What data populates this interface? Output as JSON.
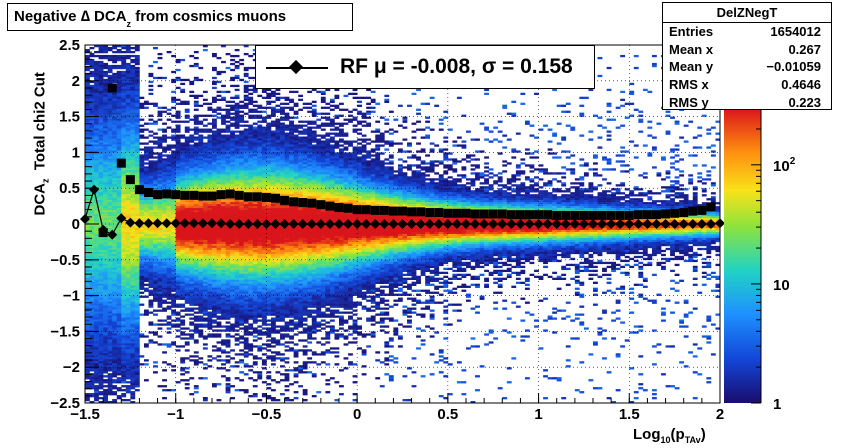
{
  "title": {
    "prefix": "Negative ∆ DCA",
    "sub": "z",
    "suffix": " from cosmics muons"
  },
  "stats": {
    "name": "DelZNegT",
    "rows": [
      {
        "key": "Entries",
        "value": "1654012"
      },
      {
        "key": "Mean x",
        "value": "0.267"
      },
      {
        "key": "Mean y",
        "value": "−0.01059"
      },
      {
        "key": "RMS x",
        "value": "0.4646"
      },
      {
        "key": "RMS y",
        "value": "0.223"
      }
    ]
  },
  "legend": {
    "text": "RF μ = -0.008, σ =   0.158"
  },
  "axes": {
    "ylabel_main": "DCA",
    "ylabel_sub": "z",
    "ylabel_rest": "  Total chi2 Cut",
    "xlabel_main": "Log",
    "xlabel_sub": "10",
    "xlabel_rest": "(p",
    "xlabel_sub2": "TAv",
    "xlabel_end": ")"
  },
  "chart_data": {
    "type": "heatmap",
    "xlim": [
      -1.5,
      2
    ],
    "ylim": [
      -2.5,
      2.5
    ],
    "xticks": [
      {
        "v": -1.5,
        "label": "−1.5"
      },
      {
        "v": -1,
        "label": "−1"
      },
      {
        "v": -0.5,
        "label": "−0.5"
      },
      {
        "v": 0,
        "label": "0"
      },
      {
        "v": 0.5,
        "label": "0.5"
      },
      {
        "v": 1,
        "label": "1"
      },
      {
        "v": 1.5,
        "label": "1.5"
      },
      {
        "v": 2,
        "label": "2"
      }
    ],
    "yticks": [
      {
        "v": -2.5,
        "label": "−2.5"
      },
      {
        "v": -2,
        "label": "−2"
      },
      {
        "v": -1.5,
        "label": "−1.5"
      },
      {
        "v": -1,
        "label": "−1"
      },
      {
        "v": -0.5,
        "label": "−0.5"
      },
      {
        "v": 0,
        "label": "0"
      },
      {
        "v": 0.5,
        "label": "0.5"
      },
      {
        "v": 1,
        "label": "1"
      },
      {
        "v": 1.5,
        "label": "1.5"
      },
      {
        "v": 2,
        "label": "2"
      },
      {
        "v": 2.5,
        "label": "2.5"
      }
    ],
    "colorbar": {
      "scale": "log",
      "min": 1,
      "max": 300,
      "labels": [
        {
          "v": 1,
          "label": "1"
        },
        {
          "v": 10,
          "label": "10"
        },
        {
          "v": 100,
          "label": "10",
          "sup": "2"
        }
      ]
    },
    "grid": true,
    "series": [
      {
        "marker": "square",
        "x": [
          -1.4,
          -1.35,
          -1.3,
          -1.25,
          -1.2,
          -1.15,
          -1.1,
          -1.05,
          -1.0,
          -0.95,
          -0.9,
          -0.85,
          -0.8,
          -0.75,
          -0.7,
          -0.65,
          -0.6,
          -0.55,
          -0.5,
          -0.45,
          -0.4,
          -0.35,
          -0.3,
          -0.25,
          -0.2,
          -0.15,
          -0.1,
          -0.05,
          0.0,
          0.05,
          0.1,
          0.15,
          0.2,
          0.25,
          0.3,
          0.35,
          0.4,
          0.45,
          0.5,
          0.55,
          0.6,
          0.65,
          0.7,
          0.75,
          0.8,
          0.85,
          0.9,
          0.95,
          1.0,
          1.05,
          1.1,
          1.15,
          1.2,
          1.25,
          1.3,
          1.35,
          1.4,
          1.45,
          1.5,
          1.55,
          1.6,
          1.65,
          1.7,
          1.75,
          1.8,
          1.85,
          1.9,
          1.95
        ],
        "y": [
          -0.12,
          1.9,
          0.85,
          0.62,
          0.48,
          0.44,
          0.41,
          0.42,
          0.41,
          0.4,
          0.4,
          0.39,
          0.39,
          0.41,
          0.42,
          0.4,
          0.38,
          0.38,
          0.37,
          0.36,
          0.33,
          0.31,
          0.3,
          0.29,
          0.27,
          0.25,
          0.23,
          0.22,
          0.2,
          0.2,
          0.19,
          0.19,
          0.18,
          0.18,
          0.17,
          0.17,
          0.16,
          0.16,
          0.15,
          0.15,
          0.15,
          0.14,
          0.14,
          0.14,
          0.14,
          0.13,
          0.13,
          0.13,
          0.13,
          0.13,
          0.12,
          0.12,
          0.12,
          0.12,
          0.12,
          0.12,
          0.12,
          0.12,
          0.12,
          0.13,
          0.13,
          0.13,
          0.14,
          0.15,
          0.16,
          0.18,
          0.19,
          0.24
        ]
      },
      {
        "marker": "diamond",
        "x": [
          -1.5,
          -1.45,
          -1.4,
          -1.35,
          -1.3,
          -1.25,
          -1.2,
          -1.15,
          -1.1,
          -1.05,
          -1.0,
          -0.95,
          -0.9,
          -0.85,
          -0.8,
          -0.75,
          -0.7,
          -0.65,
          -0.6,
          -0.55,
          -0.5,
          -0.45,
          -0.4,
          -0.35,
          -0.3,
          -0.25,
          -0.2,
          -0.15,
          -0.1,
          -0.05,
          0.0,
          0.05,
          0.1,
          0.15,
          0.2,
          0.25,
          0.3,
          0.35,
          0.4,
          0.45,
          0.5,
          0.55,
          0.6,
          0.65,
          0.7,
          0.75,
          0.8,
          0.85,
          0.9,
          0.95,
          1.0,
          1.05,
          1.1,
          1.15,
          1.2,
          1.25,
          1.3,
          1.35,
          1.4,
          1.45,
          1.5,
          1.55,
          1.6,
          1.65,
          1.7,
          1.75,
          1.8,
          1.85,
          1.9,
          1.95,
          2.0
        ],
        "y": [
          0.07,
          0.48,
          -0.08,
          -0.15,
          0.08,
          0.02,
          0.01,
          0.01,
          0.01,
          0.01,
          0.01,
          0.01,
          0.01,
          0.01,
          0.01,
          0.01,
          0.0,
          0.0,
          0.0,
          0.0,
          0.0,
          0.0,
          0.0,
          0.0,
          0.0,
          0.0,
          0.0,
          0.0,
          0.0,
          0.0,
          0.0,
          0.0,
          0.0,
          0.0,
          0.0,
          0.0,
          0.0,
          0.0,
          0.0,
          0.0,
          0.0,
          0.0,
          0.0,
          0.0,
          0.0,
          0.0,
          0.0,
          0.0,
          0.0,
          0.0,
          0.0,
          0.0,
          0.0,
          0.0,
          0.0,
          0.0,
          0.0,
          0.0,
          0.0,
          0.0,
          0.0,
          0.0,
          0.0,
          0.0,
          0.0,
          0.0,
          0.0,
          0.0,
          0.0,
          0.0,
          0.01
        ]
      }
    ]
  }
}
